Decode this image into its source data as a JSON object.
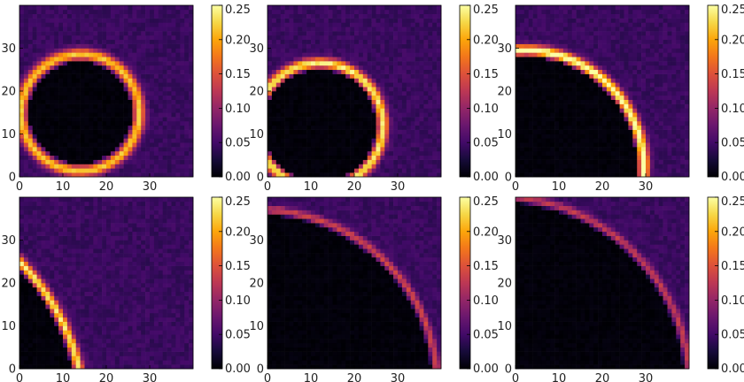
{
  "chart_data": {
    "type": "heatmap",
    "grid_size": 40,
    "colormap": "inferno",
    "colorbar": {
      "ticks": [
        "0.00",
        "0.05",
        "0.10",
        "0.15",
        "0.20",
        "0.25"
      ],
      "range": [
        0,
        0.25
      ]
    },
    "x_ticks": [
      "0",
      "10",
      "20",
      "30"
    ],
    "y_ticks": [
      "0",
      "10",
      "20",
      "30"
    ],
    "xlim": [
      0,
      40
    ],
    "ylim": [
      0,
      40
    ],
    "panels": [
      {
        "shape": "circle",
        "center": [
          14,
          15
        ],
        "radius": 13.5,
        "ring_width": 1.4,
        "peak": 0.19,
        "background": 0.045,
        "interior": 0.0
      },
      {
        "shape": "circle",
        "center": [
          12,
          12
        ],
        "radius": 14.5,
        "ring_width": 1.3,
        "peak": 0.21,
        "background": 0.045,
        "interior": 0.0
      },
      {
        "shape": "circle",
        "center": [
          2,
          2
        ],
        "radius": 27.5,
        "ring_width": 1.3,
        "peak": 0.23,
        "background": 0.045,
        "interior": 0.0
      },
      {
        "shape": "circle",
        "center": [
          -38,
          -12
        ],
        "radius": 53,
        "ring_width": 1.2,
        "peak": 0.21,
        "background": 0.045,
        "interior": 0.0
      },
      {
        "shape": "circle",
        "center": [
          -2,
          -4
        ],
        "radius": 41,
        "ring_width": 1.0,
        "peak": 0.11,
        "background": 0.045,
        "interior": 0.0
      },
      {
        "shape": "circle",
        "center": [
          -4,
          -4
        ],
        "radius": 44,
        "ring_width": 1.0,
        "peak": 0.1,
        "background": 0.045,
        "interior": 0.0
      }
    ]
  }
}
